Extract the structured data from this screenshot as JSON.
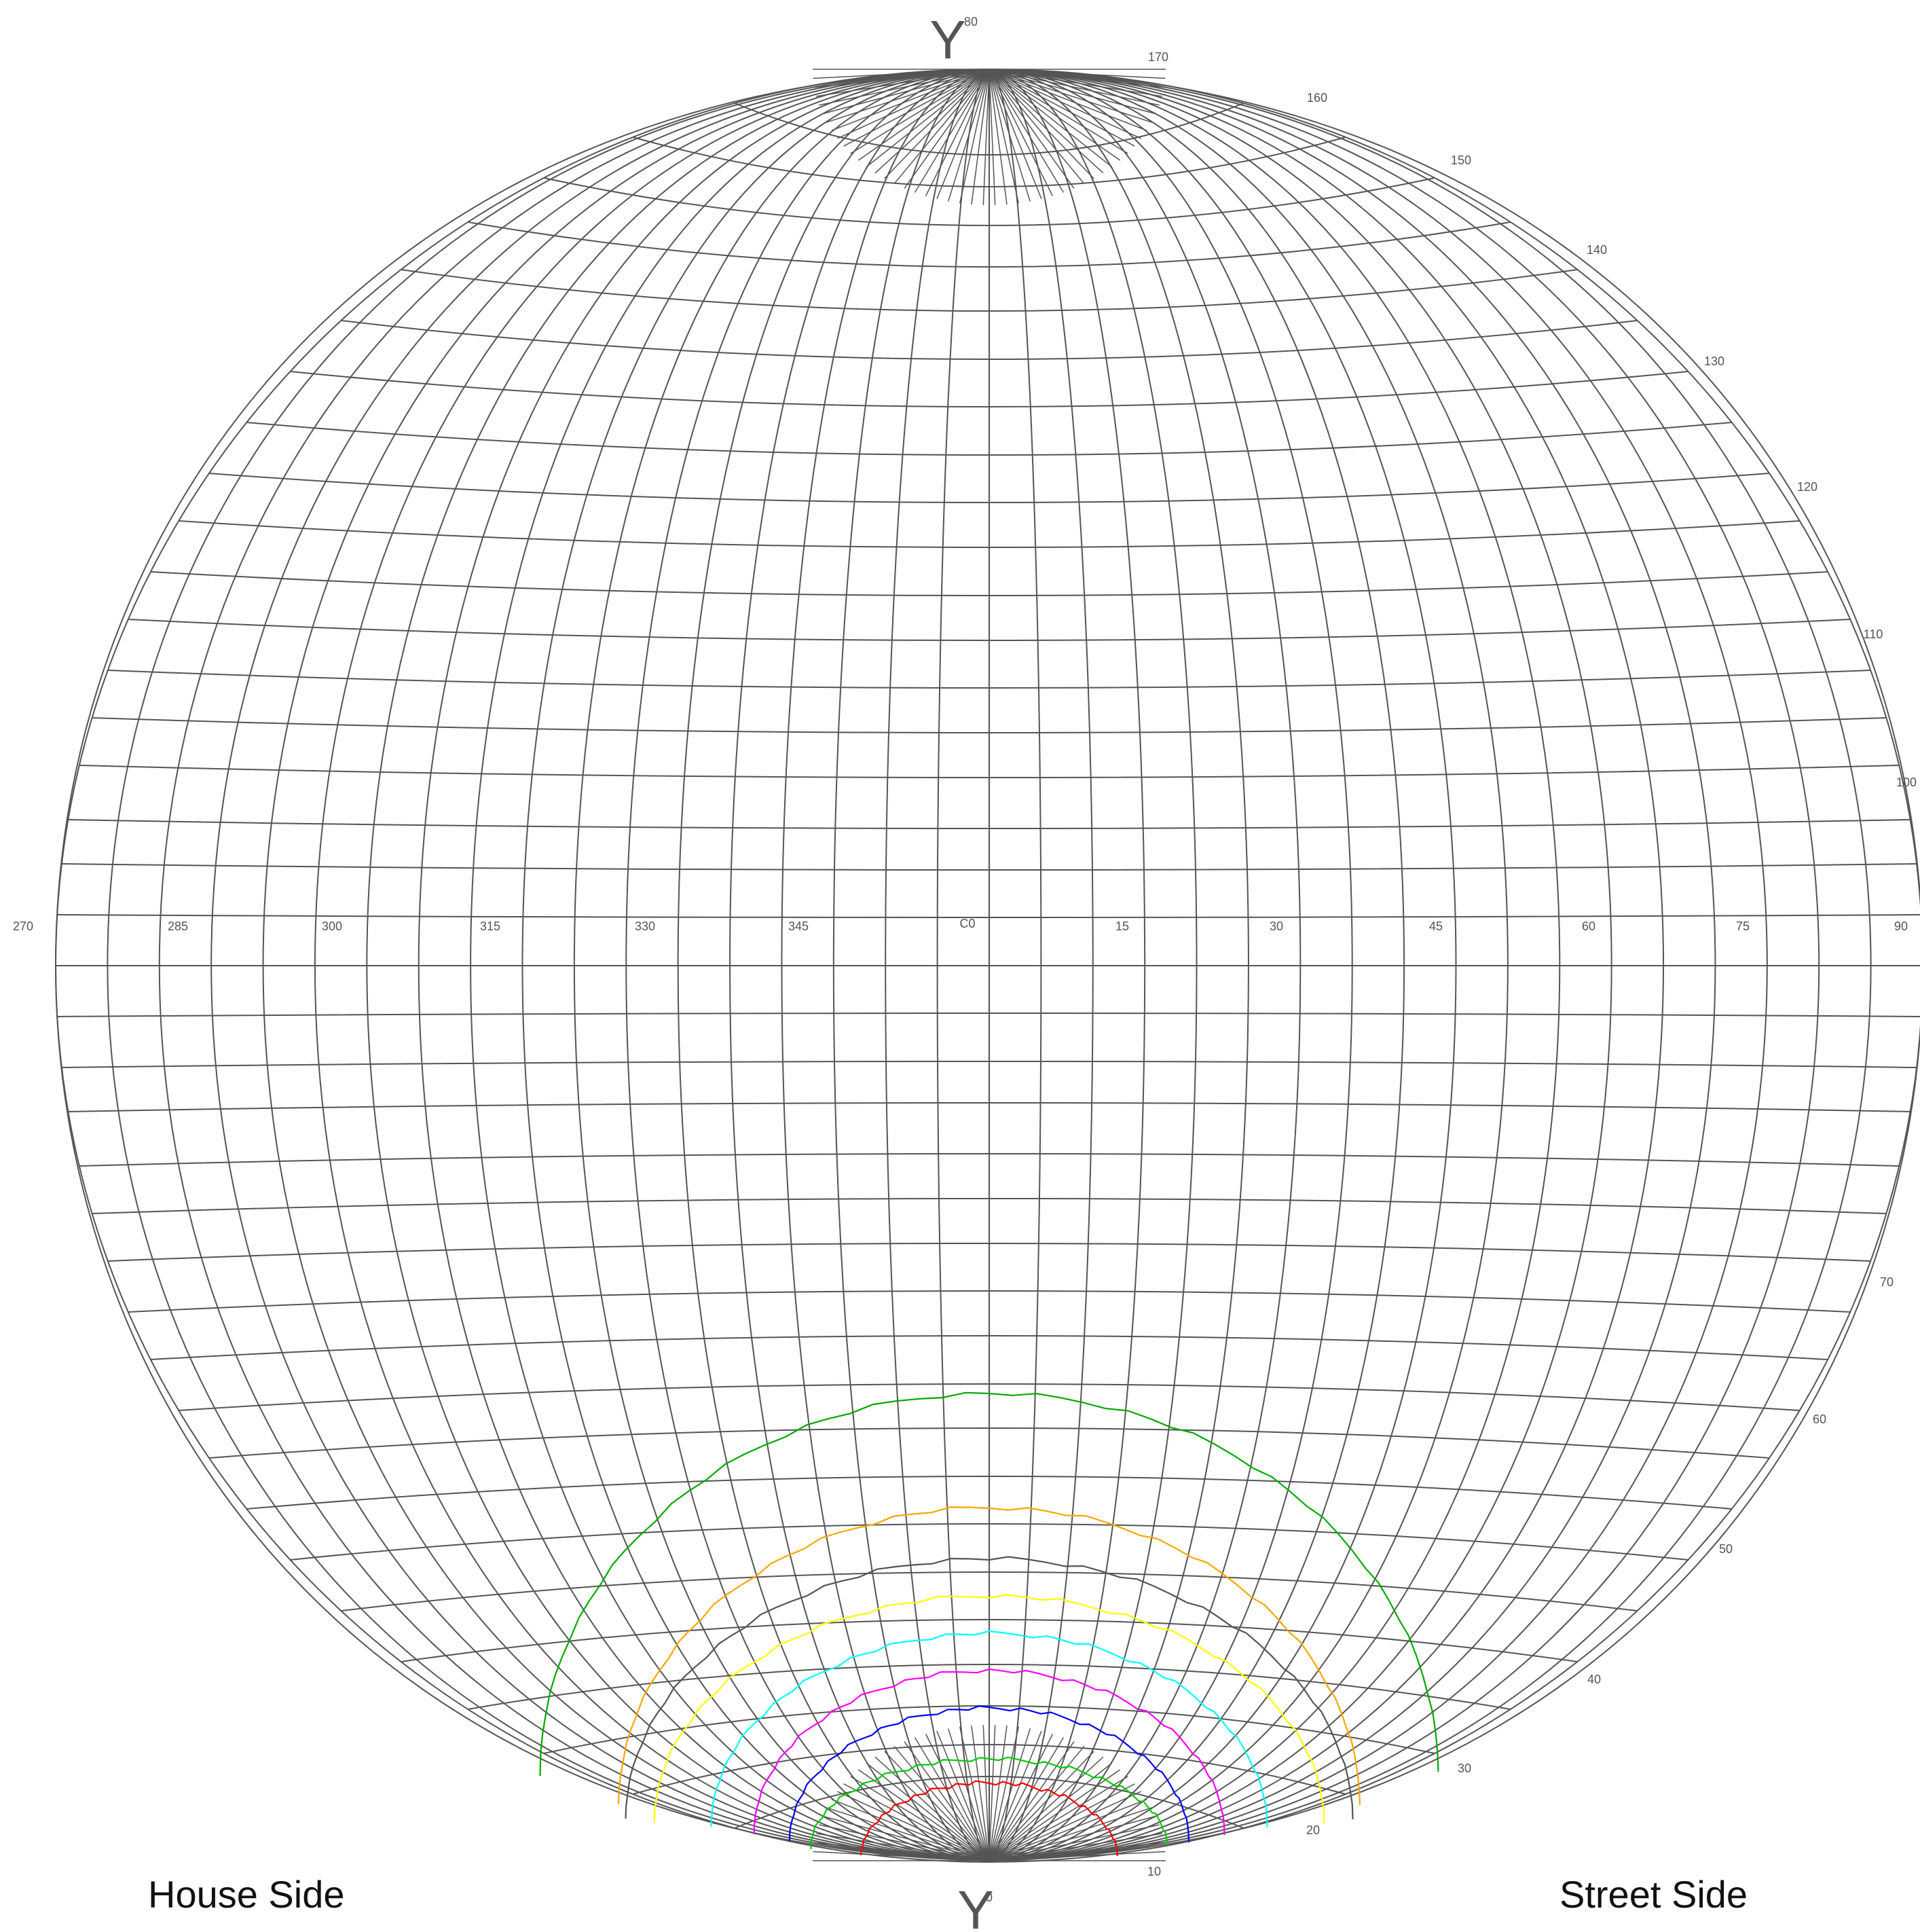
{
  "diagram": {
    "axis_marker": "Y",
    "center_label": "C0",
    "bottom_zero_label": "0",
    "top_label": "80",
    "equator_labels": [
      "270",
      "285",
      "300",
      "315",
      "330",
      "345",
      "15",
      "30",
      "45",
      "60",
      "75",
      "90"
    ],
    "upper_rim_labels": [
      "170",
      "160",
      "150",
      "140",
      "130",
      "120",
      "110",
      "100"
    ],
    "lower_rim_labels": [
      "70",
      "60",
      "50",
      "40",
      "30",
      "20",
      "10"
    ],
    "line_color": "#555555",
    "contour_colors": [
      "#ff0000",
      "#00cc00",
      "#0000ff",
      "#ff00ff",
      "#00ffff",
      "#ffff00",
      "#555555",
      "#ffa500",
      "#00aa00"
    ]
  },
  "footer": {
    "house_side": "House Side",
    "street_side": "Street Side"
  }
}
